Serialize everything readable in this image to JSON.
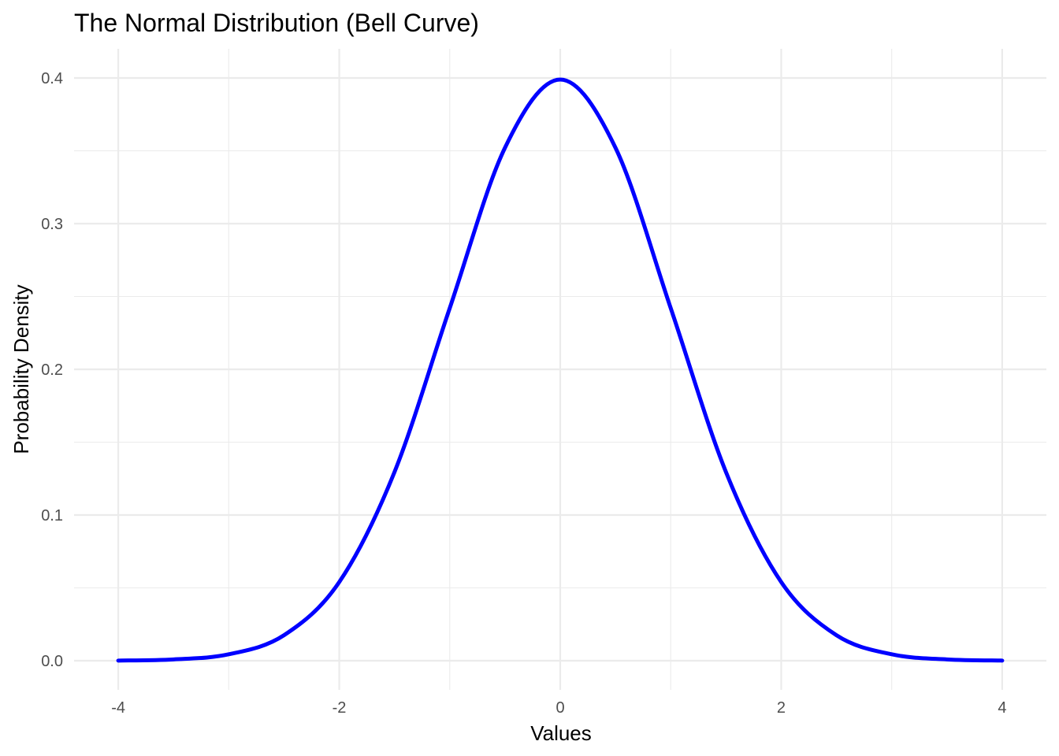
{
  "chart_data": {
    "type": "line",
    "title": "The Normal Distribution (Bell Curve)",
    "xlabel": "Values",
    "ylabel": "Probability Density",
    "xlim": [
      -4,
      4
    ],
    "ylim": [
      0,
      0.4
    ],
    "x_ticks": [
      -4,
      -2,
      0,
      2,
      4
    ],
    "x_tick_labels": [
      "-4",
      "-2",
      "0",
      "2",
      "4"
    ],
    "y_ticks": [
      0.0,
      0.1,
      0.2,
      0.3,
      0.4
    ],
    "y_tick_labels": [
      "0.0",
      "0.1",
      "0.2",
      "0.3",
      "0.4"
    ],
    "grid": true,
    "legend": "none",
    "series": [
      {
        "color": "#0000ff",
        "x": [
          -4.0,
          -3.5,
          -3.0,
          -2.5,
          -2.0,
          -1.5,
          -1.0,
          -0.5,
          0.0,
          0.5,
          1.0,
          1.5,
          2.0,
          2.5,
          3.0,
          3.5,
          4.0
        ],
        "y": [
          0.0001,
          0.0009,
          0.0044,
          0.0175,
          0.054,
          0.1295,
          0.242,
          0.3521,
          0.3989,
          0.3521,
          0.242,
          0.1295,
          0.054,
          0.0175,
          0.0044,
          0.0009,
          0.0001
        ]
      }
    ]
  }
}
